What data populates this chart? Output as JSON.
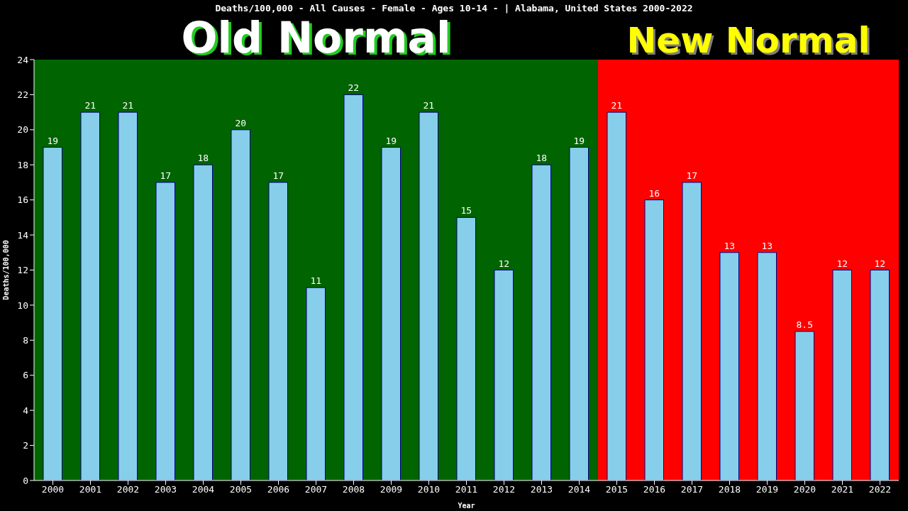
{
  "chart_data": {
    "type": "bar",
    "title": "Deaths/100,000 - All Causes - Female - Ages 10-14 -  | Alabama, United States 2000-2022",
    "xlabel": "Year",
    "ylabel": "Deaths/100,000",
    "x": [
      2000,
      2001,
      2002,
      2003,
      2004,
      2005,
      2006,
      2007,
      2008,
      2009,
      2010,
      2011,
      2012,
      2013,
      2014,
      2015,
      2016,
      2017,
      2018,
      2019,
      2020,
      2021,
      2022
    ],
    "values": [
      19,
      21,
      21,
      17,
      18,
      20,
      17,
      11,
      22,
      19,
      21,
      15,
      12,
      18,
      19,
      21,
      16,
      17,
      13,
      13,
      8.5,
      12,
      12
    ],
    "color": "#87ceeb",
    "data_labels": true,
    "xlim": [
      1999.5,
      2022.5
    ],
    "xticks": [
      2000,
      2001,
      2002,
      2003,
      2004,
      2005,
      2006,
      2007,
      2008,
      2009,
      2010,
      2011,
      2012,
      2013,
      2014,
      2015,
      2016,
      2017,
      2018,
      2019,
      2020,
      2021,
      2022
    ],
    "ylim": [
      0,
      24
    ],
    "yticks": [
      0,
      2,
      4,
      6,
      8,
      10,
      12,
      14,
      16,
      18,
      20,
      22,
      24
    ],
    "bands": [
      {
        "axis": "x",
        "from": 1999.5,
        "to": 2014.5,
        "label": "Old Normal",
        "color": "#006400"
      },
      {
        "axis": "x",
        "from": 2014.5,
        "to": 2022.5,
        "label": "New Normal",
        "color": "#ff0000"
      }
    ],
    "grid": false,
    "legend": false
  }
}
